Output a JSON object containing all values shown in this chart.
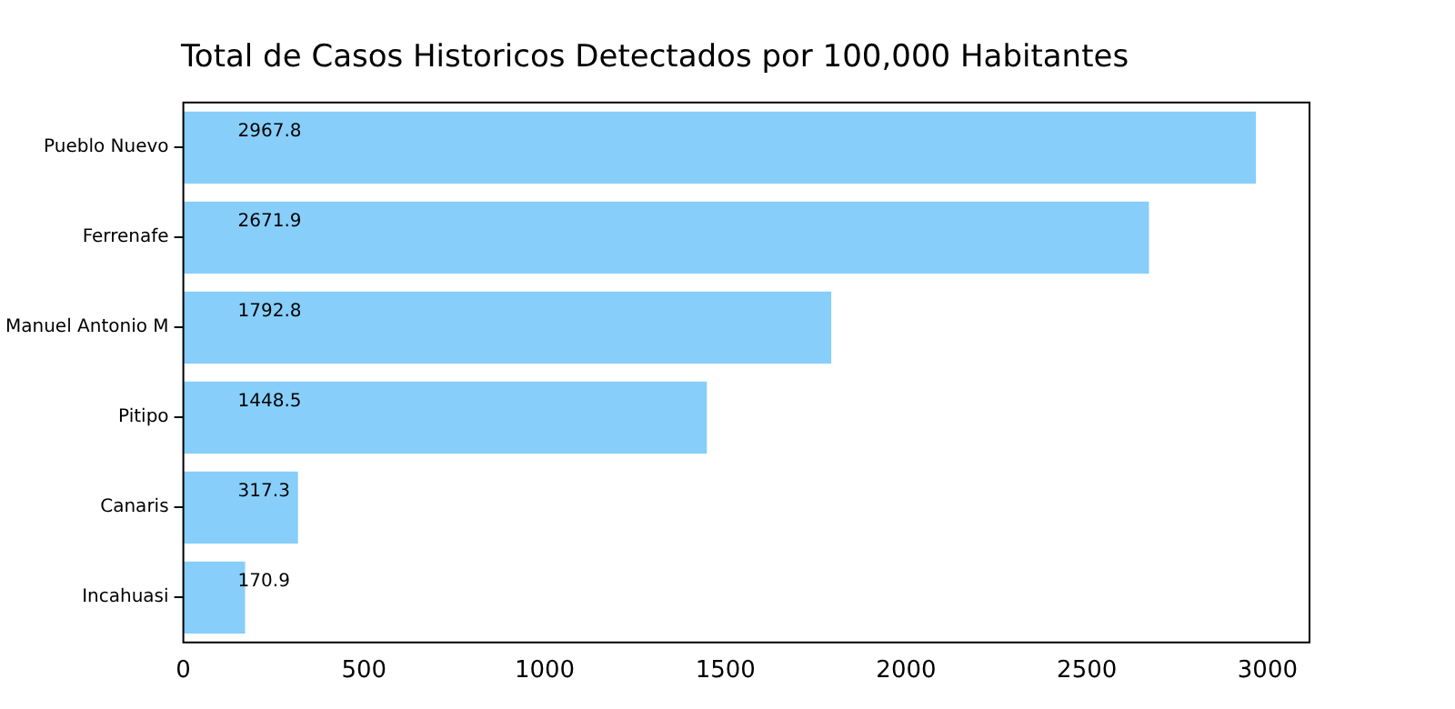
{
  "chart_data": {
    "type": "bar",
    "orientation": "horizontal",
    "title": "Total de Casos Historicos Detectados por 100,000 Habitantes",
    "categories": [
      "Pueblo Nuevo",
      "Ferrenafe",
      "Manuel Antonio M",
      "Pitipo",
      "Canaris",
      "Incahuasi"
    ],
    "values": [
      2967.8,
      2671.9,
      1792.8,
      1448.5,
      317.3,
      170.9
    ],
    "color": "#87cefa",
    "xlim": [
      0,
      3116
    ],
    "xticks": [
      0,
      500,
      1000,
      1500,
      2000,
      2500,
      3000
    ],
    "grid": false,
    "legend": false,
    "data_labels": true
  }
}
